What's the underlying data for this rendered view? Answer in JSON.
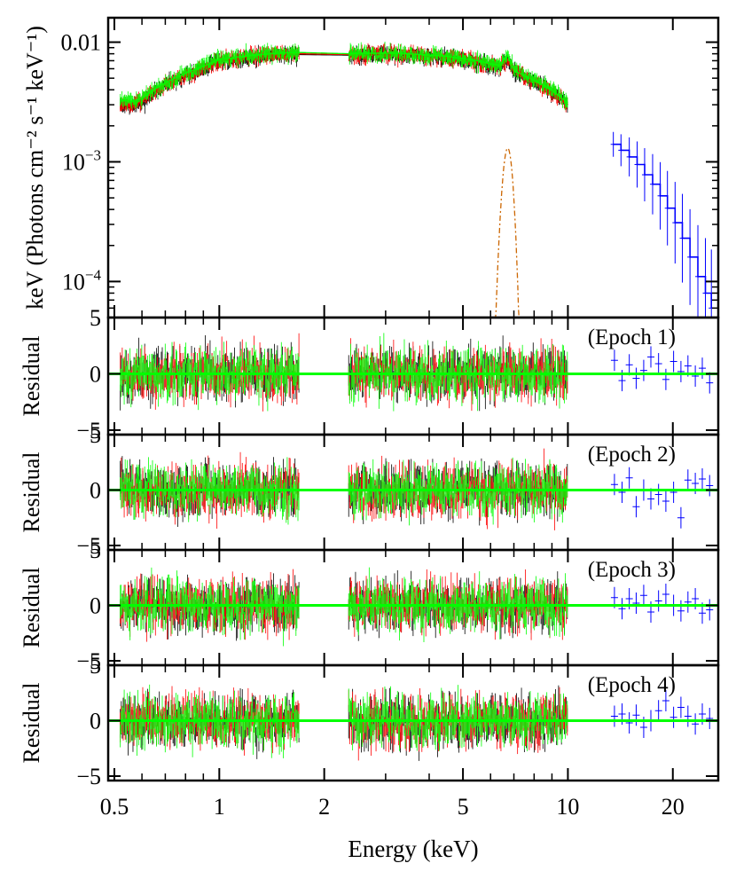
{
  "chart_data": [
    {
      "type": "scatter",
      "panel": "spectrum",
      "ylabel": "keV (Photons cm⁻² s⁻¹ keV⁻¹)",
      "yscale": "log",
      "xscale": "log",
      "xlim": [
        0.48,
        27
      ],
      "ylim": [
        5e-05,
        0.016
      ],
      "yticks": [
        {
          "value": 0.01,
          "label": "0.01"
        },
        {
          "value": 0.001,
          "label": "10",
          "sup": "−3"
        },
        {
          "value": 0.0001,
          "label": "10",
          "sup": "−4"
        }
      ],
      "series": [
        {
          "color": "#000000",
          "x": [
            0.52,
            0.56,
            0.6,
            0.65,
            0.7,
            0.8,
            0.9,
            1.0,
            1.2,
            1.4,
            1.6,
            1.7,
            2.35,
            2.6,
            3.0,
            3.5,
            4.0,
            4.5,
            5.0,
            5.5,
            6.0,
            6.4,
            6.7,
            7.0,
            8.0,
            9.0,
            10.0
          ],
          "y": [
            0.0029,
            0.0029,
            0.0031,
            0.0038,
            0.0043,
            0.0052,
            0.006,
            0.0069,
            0.0074,
            0.0077,
            0.0079,
            0.0079,
            0.0078,
            0.0079,
            0.0079,
            0.0078,
            0.0076,
            0.0074,
            0.0071,
            0.0068,
            0.0064,
            0.0062,
            0.007,
            0.0056,
            0.0046,
            0.0038,
            0.003
          ]
        },
        {
          "color": "#ff0000",
          "x": [
            0.52,
            0.56,
            0.6,
            0.65,
            0.7,
            0.8,
            0.9,
            1.0,
            1.2,
            1.4,
            1.6,
            1.7,
            2.35,
            2.6,
            3.0,
            3.5,
            4.0,
            4.5,
            5.0,
            5.5,
            6.0,
            6.4,
            6.7,
            7.0,
            8.0,
            9.0,
            10.0
          ],
          "y": [
            0.003,
            0.003,
            0.0032,
            0.0039,
            0.0044,
            0.0053,
            0.0061,
            0.007,
            0.0075,
            0.0078,
            0.008,
            0.008,
            0.0079,
            0.008,
            0.008,
            0.0079,
            0.0077,
            0.0075,
            0.0072,
            0.0069,
            0.0065,
            0.0063,
            0.0072,
            0.0057,
            0.0047,
            0.0039,
            0.003
          ]
        },
        {
          "color": "#00ff00",
          "x": [
            0.52,
            0.56,
            0.6,
            0.65,
            0.7,
            0.8,
            0.9,
            1.0,
            1.2,
            1.4,
            1.6,
            1.7,
            2.35,
            2.6,
            3.0,
            3.5,
            4.0,
            4.5,
            5.0,
            5.5,
            6.0,
            6.4,
            6.7,
            7.0,
            8.0,
            9.0,
            10.0
          ],
          "y": [
            0.0033,
            0.0032,
            0.0034,
            0.004,
            0.0046,
            0.0055,
            0.0063,
            0.0072,
            0.0077,
            0.008,
            0.0082,
            0.0082,
            0.008,
            0.0081,
            0.0081,
            0.008,
            0.0078,
            0.0076,
            0.0073,
            0.007,
            0.0066,
            0.0064,
            0.0078,
            0.0058,
            0.0048,
            0.004,
            0.0031
          ]
        },
        {
          "color": "#0000ff",
          "x": [
            13.5,
            14.2,
            15.0,
            15.8,
            16.6,
            17.5,
            18.4,
            19.3,
            20.3,
            21.3,
            22.4,
            23.6,
            24.8,
            25.8
          ],
          "y": [
            0.0014,
            0.00125,
            0.0011,
            0.00095,
            0.00078,
            0.00065,
            0.00052,
            0.00041,
            0.00031,
            0.00023,
            0.00016,
            0.00011,
            8e-05,
            6e-05
          ]
        }
      ]
    },
    {
      "type": "scatter",
      "panel": "residual",
      "annotation": "(Epoch 1)",
      "ylabel": "Residual",
      "ylim": [
        -5.4,
        5
      ],
      "yticks": [
        {
          "value": 5,
          "label": "5"
        },
        {
          "value": 0,
          "label": "0"
        },
        {
          "value": -5,
          "label": "−5"
        }
      ],
      "blue": {
        "x": [
          13.6,
          14.3,
          15.0,
          15.7,
          16.5,
          17.3,
          18.2,
          19.1,
          20.1,
          21.1,
          22.1,
          23.2,
          24.3,
          25.5
        ],
        "y": [
          1.2,
          -0.6,
          0.8,
          -0.4,
          0.3,
          1.5,
          0.9,
          -0.5,
          1.1,
          0.2,
          0.7,
          -0.2,
          0.5,
          -0.8
        ]
      }
    },
    {
      "type": "scatter",
      "panel": "residual",
      "annotation": "(Epoch 2)",
      "ylabel": "Residual",
      "ylim": [
        -5.4,
        5
      ],
      "yticks": [
        {
          "value": 5,
          "label": "5"
        },
        {
          "value": 0,
          "label": "0"
        },
        {
          "value": -5,
          "label": "−5"
        }
      ],
      "blue": {
        "x": [
          13.6,
          14.3,
          15.0,
          15.7,
          16.5,
          17.3,
          18.2,
          19.1,
          20.1,
          21.1,
          22.1,
          23.2,
          24.3,
          25.5
        ],
        "y": [
          0.5,
          -0.2,
          1.1,
          -1.5,
          0.0,
          -0.8,
          -0.4,
          -1.0,
          -0.2,
          -2.5,
          0.9,
          0.6,
          1.0,
          0.4
        ]
      }
    },
    {
      "type": "scatter",
      "panel": "residual",
      "annotation": "(Epoch 3)",
      "ylabel": "Residual",
      "ylim": [
        -5.4,
        5
      ],
      "yticks": [
        {
          "value": 5,
          "label": "5"
        },
        {
          "value": 0,
          "label": "0"
        },
        {
          "value": -5,
          "label": "−5"
        }
      ],
      "blue": {
        "x": [
          13.6,
          14.3,
          15.0,
          15.7,
          16.5,
          17.3,
          18.2,
          19.1,
          20.1,
          21.1,
          22.1,
          23.2,
          24.3,
          25.5
        ],
        "y": [
          0.7,
          -0.3,
          0.6,
          0.2,
          0.9,
          -0.6,
          0.4,
          1.0,
          0.0,
          -0.5,
          0.3,
          0.6,
          -0.7,
          -0.4
        ]
      }
    },
    {
      "type": "scatter",
      "panel": "residual",
      "annotation": "(Epoch 4)",
      "ylabel": "Residual",
      "ylim": [
        -5.4,
        5
      ],
      "yticks": [
        {
          "value": 5,
          "label": "5"
        },
        {
          "value": 0,
          "label": "0"
        },
        {
          "value": -5,
          "label": "−5"
        }
      ],
      "blue": {
        "x": [
          13.6,
          14.3,
          15.0,
          15.7,
          16.5,
          17.3,
          18.2,
          19.1,
          20.1,
          21.1,
          22.1,
          23.2,
          24.3,
          25.5
        ],
        "y": [
          0.4,
          0.6,
          -0.2,
          0.5,
          -0.6,
          0.0,
          0.9,
          1.8,
          0.3,
          1.2,
          0.4,
          -0.3,
          0.6,
          0.2
        ]
      }
    }
  ],
  "shared": {
    "xlabel": "Energy (keV)",
    "xticks": [
      {
        "value": 0.5,
        "label": "0.5"
      },
      {
        "value": 1,
        "label": "1"
      },
      {
        "value": 2,
        "label": "2"
      },
      {
        "value": 5,
        "label": "5"
      },
      {
        "value": 10,
        "label": "10"
      },
      {
        "value": 20,
        "label": "20"
      }
    ],
    "data_gaps": [
      [
        1.7,
        2.35
      ],
      [
        10.0,
        13.5
      ]
    ],
    "colors": {
      "epoch_a": "#000000",
      "epoch_b": "#ff0000",
      "epoch_c": "#00ff00",
      "high_energy": "#0000ff",
      "zero_line": "#00ff00"
    }
  }
}
